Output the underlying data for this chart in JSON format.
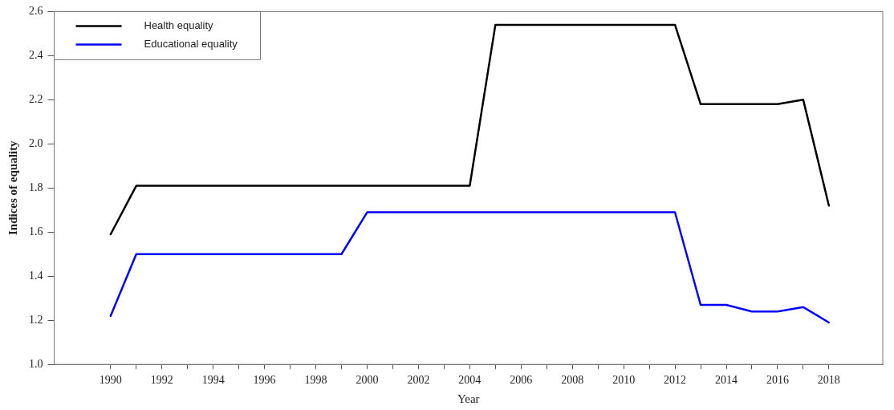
{
  "chart_data": {
    "type": "line",
    "xlabel": "Year",
    "ylabel": "Indices of equality",
    "x": [
      1990,
      1991,
      1992,
      1993,
      1994,
      1995,
      1996,
      1997,
      1998,
      1999,
      2000,
      2001,
      2002,
      2003,
      2004,
      2005,
      2006,
      2007,
      2008,
      2009,
      2010,
      2011,
      2012,
      2013,
      2014,
      2015,
      2016,
      2017,
      2018
    ],
    "series": [
      {
        "name": "Health equality",
        "color": "#000000",
        "values": [
          1.59,
          1.81,
          1.81,
          1.81,
          1.81,
          1.81,
          1.81,
          1.81,
          1.81,
          1.81,
          1.81,
          1.81,
          1.81,
          1.81,
          1.81,
          2.54,
          2.54,
          2.54,
          2.54,
          2.54,
          2.54,
          2.54,
          2.54,
          2.18,
          2.18,
          2.18,
          2.18,
          2.2,
          1.72
        ]
      },
      {
        "name": "Educational equality",
        "color": "#0000ff",
        "values": [
          1.22,
          1.5,
          1.5,
          1.5,
          1.5,
          1.5,
          1.5,
          1.5,
          1.5,
          1.5,
          1.69,
          1.69,
          1.69,
          1.69,
          1.69,
          1.69,
          1.69,
          1.69,
          1.69,
          1.69,
          1.69,
          1.69,
          1.69,
          1.27,
          1.27,
          1.24,
          1.24,
          1.26,
          1.19
        ]
      }
    ],
    "xlim": [
      1987.8,
      2020.1
    ],
    "xticks": [
      1990,
      {
        "value": 1991,
        "label": null
      },
      1992,
      {
        "value": 1993,
        "label": null
      },
      1994,
      {
        "value": 1995,
        "label": null
      },
      1996,
      {
        "value": 1997,
        "label": null
      },
      1998,
      {
        "value": 1999,
        "label": null
      },
      2000,
      {
        "value": 2001,
        "label": null
      },
      2002,
      {
        "value": 2003,
        "label": null
      },
      2004,
      {
        "value": 2005,
        "label": null
      },
      2006,
      {
        "value": 2007,
        "label": null
      },
      2008,
      {
        "value": 2009,
        "label": null
      },
      2010,
      {
        "value": 2011,
        "label": null
      },
      2012,
      {
        "value": 2013,
        "label": null
      },
      2014,
      {
        "value": 2015,
        "label": null
      },
      2016,
      {
        "value": 2017,
        "label": null
      },
      2018
    ],
    "ylim": [
      1.0,
      2.6
    ],
    "yticks": [
      {
        "value": 1.0,
        "label": "1.0"
      },
      {
        "value": 1.2,
        "label": "1.2"
      },
      {
        "value": 1.4,
        "label": "1.4"
      },
      {
        "value": 1.6,
        "label": "1.6"
      },
      {
        "value": 1.8,
        "label": "1.8"
      },
      {
        "value": 2.0,
        "label": "2.0"
      },
      {
        "value": 2.2,
        "label": "2.2"
      },
      {
        "value": 2.4,
        "label": "2.4"
      },
      {
        "value": 2.6,
        "label": "2.6"
      }
    ],
    "grid": false,
    "legend": "top left",
    "marker": "none",
    "line_style": "solid"
  }
}
